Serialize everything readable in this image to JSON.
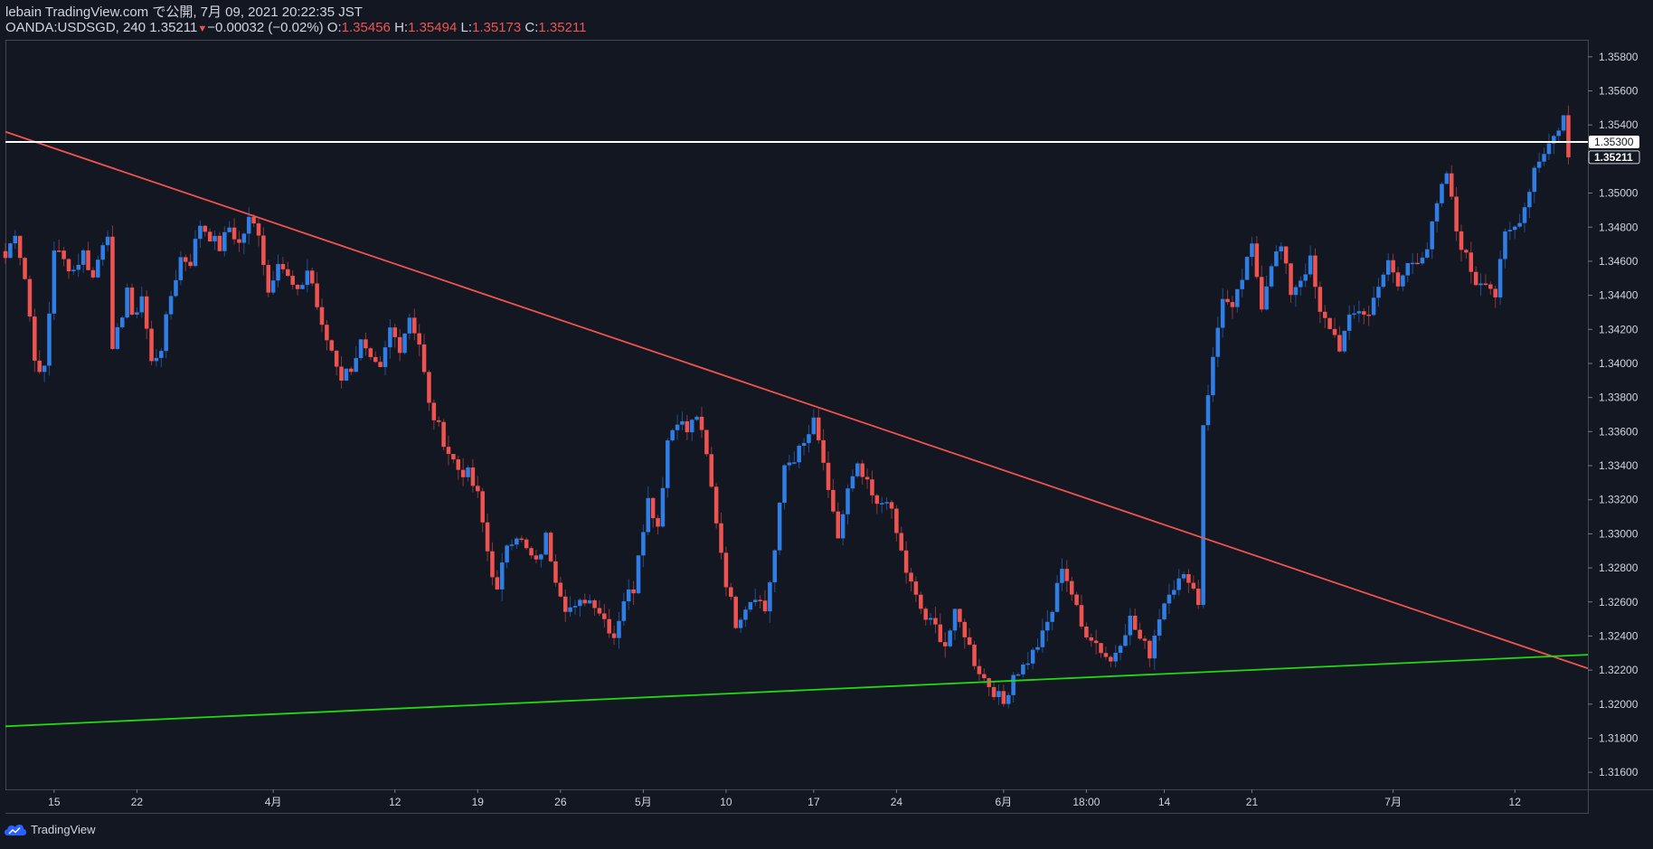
{
  "header": {
    "publish_line": "lebain TradingView.com で公開, 7月 09, 2021 20:22:35 JST",
    "symbol": "OANDA:USDSGD, 240",
    "last": "1.35211",
    "change": "−0.00032 (−0.02%)",
    "o_label": "O:",
    "o_value": "1.35456",
    "h_label": "H:",
    "h_value": "1.35494",
    "l_label": "L:",
    "l_value": "1.35173",
    "c_label": "C:",
    "c_value": "1.35211"
  },
  "footer": {
    "brand": "TradingView"
  },
  "colors": {
    "background": "#131722",
    "up_candle": "#2f7ee6",
    "down_candle": "#ef5350",
    "trendline_down": "#ef5350",
    "trendline_up": "#22d814",
    "horizontal_line": "#ffffff"
  },
  "chart_data": {
    "type": "candlestick",
    "symbol": "OANDA:USDSGD",
    "interval": "240",
    "y_axis": {
      "range": [
        1.315,
        1.359
      ],
      "ticks": [
        "1.35800",
        "1.35600",
        "1.35400",
        "1.35200",
        "1.35000",
        "1.34800",
        "1.34600",
        "1.34400",
        "1.34200",
        "1.34000",
        "1.33800",
        "1.33600",
        "1.33400",
        "1.33200",
        "1.33000",
        "1.32800",
        "1.32600",
        "1.32400",
        "1.32200",
        "1.32000",
        "1.31800",
        "1.31600"
      ],
      "price_labels": [
        {
          "value": "1.35300",
          "kind": "horizontal-line"
        },
        {
          "value": "1.35211",
          "kind": "last-price"
        }
      ]
    },
    "x_axis": {
      "range": [
        0,
        325
      ],
      "ticks": [
        {
          "label": "15",
          "x": 10
        },
        {
          "label": "22",
          "x": 27
        },
        {
          "label": "4月",
          "x": 55
        },
        {
          "label": "12",
          "x": 80
        },
        {
          "label": "19",
          "x": 97
        },
        {
          "label": "26",
          "x": 114
        },
        {
          "label": "5月",
          "x": 131
        },
        {
          "label": "10",
          "x": 148
        },
        {
          "label": "17",
          "x": 166
        },
        {
          "label": "24",
          "x": 183
        },
        {
          "label": "6月",
          "x": 205
        },
        {
          "label": "18:00",
          "x": 222
        },
        {
          "label": "14",
          "x": 238
        },
        {
          "label": "21",
          "x": 256
        },
        {
          "label": "7月",
          "x": 285
        },
        {
          "label": "12",
          "x": 310
        }
      ]
    },
    "bars_close_path": [
      [
        0,
        1.3462
      ],
      [
        2,
        1.3478
      ],
      [
        4,
        1.345
      ],
      [
        6,
        1.3405
      ],
      [
        7,
        1.3392
      ],
      [
        8,
        1.3398
      ],
      [
        9,
        1.343
      ],
      [
        10,
        1.3468
      ],
      [
        12,
        1.346
      ],
      [
        14,
        1.3455
      ],
      [
        16,
        1.3465
      ],
      [
        18,
        1.345
      ],
      [
        20,
        1.3472
      ],
      [
        21,
        1.3478
      ],
      [
        22,
        1.3405
      ],
      [
        24,
        1.343
      ],
      [
        25,
        1.3445
      ],
      [
        26,
        1.3425
      ],
      [
        28,
        1.344
      ],
      [
        30,
        1.34
      ],
      [
        32,
        1.341
      ],
      [
        34,
        1.344
      ],
      [
        36,
        1.3462
      ],
      [
        38,
        1.346
      ],
      [
        40,
        1.3482
      ],
      [
        42,
        1.3475
      ],
      [
        44,
        1.3468
      ],
      [
        46,
        1.348
      ],
      [
        48,
        1.347
      ],
      [
        50,
        1.3484
      ],
      [
        52,
        1.3478
      ],
      [
        54,
        1.3442
      ],
      [
        56,
        1.3462
      ],
      [
        58,
        1.345
      ],
      [
        60,
        1.344
      ],
      [
        62,
        1.3455
      ],
      [
        63,
        1.3447
      ],
      [
        65,
        1.342
      ],
      [
        67,
        1.3408
      ],
      [
        69,
        1.3392
      ],
      [
        71,
        1.3398
      ],
      [
        73,
        1.3412
      ],
      [
        75,
        1.34
      ],
      [
        77,
        1.3395
      ],
      [
        79,
        1.342
      ],
      [
        81,
        1.341
      ],
      [
        83,
        1.3428
      ],
      [
        85,
        1.3412
      ],
      [
        87,
        1.3375
      ],
      [
        89,
        1.3362
      ],
      [
        91,
        1.3348
      ],
      [
        93,
        1.3338
      ],
      [
        95,
        1.3335
      ],
      [
        97,
        1.3322
      ],
      [
        99,
        1.329
      ],
      [
        101,
        1.3265
      ],
      [
        103,
        1.3295
      ],
      [
        105,
        1.33
      ],
      [
        107,
        1.329
      ],
      [
        109,
        1.3282
      ],
      [
        111,
        1.3298
      ],
      [
        113,
        1.3275
      ],
      [
        115,
        1.3258
      ],
      [
        117,
        1.3255
      ],
      [
        119,
        1.3262
      ],
      [
        121,
        1.326
      ],
      [
        123,
        1.325
      ],
      [
        125,
        1.324
      ],
      [
        127,
        1.3262
      ],
      [
        129,
        1.3268
      ],
      [
        130,
        1.329
      ],
      [
        132,
        1.332
      ],
      [
        134,
        1.3305
      ],
      [
        136,
        1.3355
      ],
      [
        138,
        1.3368
      ],
      [
        140,
        1.336
      ],
      [
        142,
        1.337
      ],
      [
        144,
        1.3345
      ],
      [
        146,
        1.3308
      ],
      [
        148,
        1.3272
      ],
      [
        150,
        1.3248
      ],
      [
        152,
        1.3258
      ],
      [
        154,
        1.3265
      ],
      [
        156,
        1.3255
      ],
      [
        158,
        1.329
      ],
      [
        160,
        1.334
      ],
      [
        162,
        1.3345
      ],
      [
        164,
        1.3352
      ],
      [
        166,
        1.3365
      ],
      [
        168,
        1.3342
      ],
      [
        169,
        1.3322
      ],
      [
        171,
        1.3298
      ],
      [
        173,
        1.3325
      ],
      [
        175,
        1.3338
      ],
      [
        177,
        1.3328
      ],
      [
        179,
        1.3315
      ],
      [
        181,
        1.3322
      ],
      [
        183,
        1.33
      ],
      [
        185,
        1.3278
      ],
      [
        187,
        1.3262
      ],
      [
        189,
        1.325
      ],
      [
        191,
        1.3245
      ],
      [
        193,
        1.3235
      ],
      [
        195,
        1.3252
      ],
      [
        197,
        1.3242
      ],
      [
        199,
        1.3225
      ],
      [
        201,
        1.3215
      ],
      [
        203,
        1.3208
      ],
      [
        205,
        1.32
      ],
      [
        207,
        1.3218
      ],
      [
        209,
        1.3222
      ],
      [
        211,
        1.323
      ],
      [
        213,
        1.324
      ],
      [
        215,
        1.3255
      ],
      [
        217,
        1.3282
      ],
      [
        219,
        1.3265
      ],
      [
        221,
        1.3245
      ],
      [
        223,
        1.324
      ],
      [
        225,
        1.3232
      ],
      [
        227,
        1.3225
      ],
      [
        229,
        1.3238
      ],
      [
        231,
        1.325
      ],
      [
        233,
        1.3238
      ],
      [
        235,
        1.323
      ],
      [
        237,
        1.3252
      ],
      [
        239,
        1.3268
      ],
      [
        241,
        1.3272
      ],
      [
        243,
        1.3275
      ],
      [
        245,
        1.326
      ],
      [
        246,
        1.3365
      ],
      [
        248,
        1.3402
      ],
      [
        250,
        1.344
      ],
      [
        252,
        1.343
      ],
      [
        254,
        1.345
      ],
      [
        256,
        1.3468
      ],
      [
        258,
        1.3435
      ],
      [
        260,
        1.346
      ],
      [
        262,
        1.3468
      ],
      [
        264,
        1.3442
      ],
      [
        266,
        1.345
      ],
      [
        268,
        1.346
      ],
      [
        270,
        1.3428
      ],
      [
        272,
        1.3422
      ],
      [
        274,
        1.341
      ],
      [
        276,
        1.3425
      ],
      [
        278,
        1.3432
      ],
      [
        280,
        1.3428
      ],
      [
        282,
        1.3448
      ],
      [
        284,
        1.3458
      ],
      [
        286,
        1.3445
      ],
      [
        288,
        1.3458
      ],
      [
        290,
        1.3462
      ],
      [
        292,
        1.3468
      ],
      [
        294,
        1.3492
      ],
      [
        296,
        1.3512
      ],
      [
        298,
        1.3478
      ],
      [
        300,
        1.3462
      ],
      [
        302,
        1.3448
      ],
      [
        304,
        1.345
      ],
      [
        306,
        1.344
      ],
      [
        308,
        1.3475
      ],
      [
        310,
        1.348
      ],
      [
        312,
        1.3492
      ],
      [
        314,
        1.3515
      ],
      [
        316,
        1.3525
      ],
      [
        318,
        1.3533
      ],
      [
        320,
        1.3545
      ],
      [
        321,
        1.3521
      ]
    ],
    "trendlines": [
      {
        "kind": "descending",
        "color": "#ef5350",
        "from": [
          0,
          1.3536
        ],
        "to": [
          325,
          1.3221
        ]
      },
      {
        "kind": "ascending",
        "color": "#22d814",
        "from": [
          0,
          1.3187
        ],
        "to": [
          325,
          1.3229
        ]
      },
      {
        "kind": "horizontal",
        "color": "#ffffff",
        "from": [
          0,
          1.353
        ],
        "to": [
          325,
          1.353
        ]
      }
    ]
  }
}
